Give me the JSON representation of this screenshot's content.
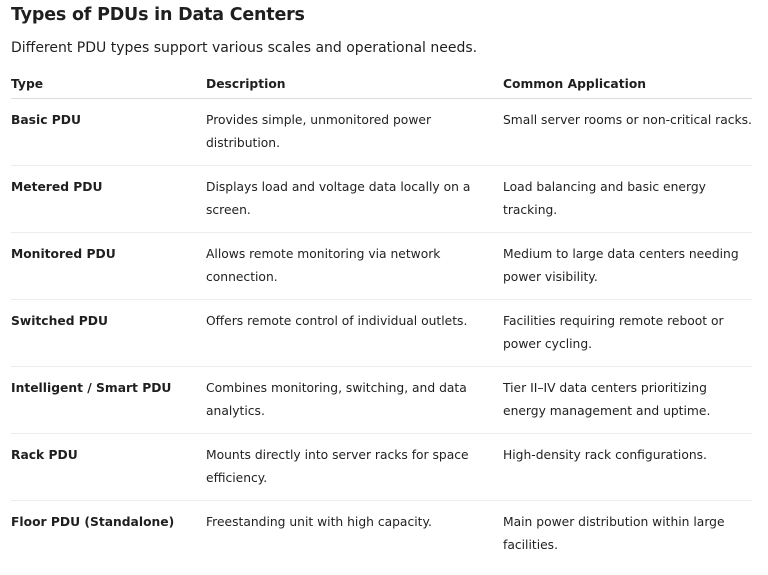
{
  "title": "Types of PDUs in Data Centers",
  "subtitle": "Different PDU types support various scales and operational needs.",
  "table": {
    "headers": [
      "Type",
      "Description",
      "Common Application"
    ],
    "rows": [
      [
        "Basic PDU",
        "Provides simple, unmonitored power distribution.",
        "Small server rooms or non-critical racks."
      ],
      [
        "Metered PDU",
        "Displays load and voltage data locally on a screen.",
        "Load balancing and basic energy tracking."
      ],
      [
        "Monitored PDU",
        "Allows remote monitoring via network connection.",
        "Medium to large data centers needing power visibility."
      ],
      [
        "Switched PDU",
        "Offers remote control of individual outlets.",
        "Facilities requiring remote reboot or power cycling."
      ],
      [
        "Intelligent / Smart PDU",
        "Combines monitoring, switching, and data analytics.",
        "Tier II–IV data centers prioritizing energy management and uptime."
      ],
      [
        "Rack PDU",
        "Mounts directly into server racks for space efficiency.",
        "High-density rack configurations."
      ],
      [
        "Floor PDU (Standalone)",
        "Freestanding unit with high capacity.",
        "Main power distribution within large facilities."
      ]
    ]
  }
}
